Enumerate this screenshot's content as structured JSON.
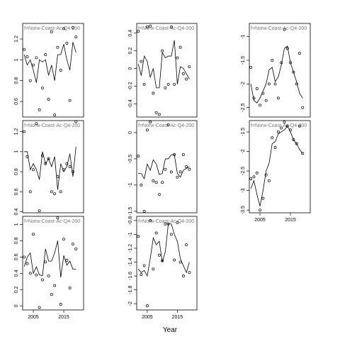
{
  "xlabel": "Year",
  "chart_data": [
    {
      "type": "line",
      "title": "f=Norw-Coast-Ac-Q4-200",
      "x": [
        2002,
        2003,
        2004,
        2005,
        2006,
        2007,
        2008,
        2009,
        2010,
        2011,
        2012,
        2013,
        2014,
        2015,
        2016,
        2017,
        2018,
        2019
      ],
      "xlim": [
        2001.5,
        2021.5
      ],
      "ylim": [
        0.45,
        1.35
      ],
      "yticks": [
        0.6,
        0.8,
        1.0,
        1.2
      ],
      "series": [
        {
          "style": "points",
          "color": "#000000",
          "values": [
            1.1,
            1.03,
            0.8,
            0.95,
            1.02,
            0.52,
            0.73,
            1.05,
            0.62,
            1.27,
            0.47,
            1.12,
            0.9,
            1.3,
            1.16,
            0.61,
            1.31,
            1.22
          ]
        },
        {
          "style": "line",
          "color": "#000000",
          "values": [
            1.05,
            0.95,
            1.0,
            0.9,
            0.78,
            1.0,
            0.98,
            1.0,
            0.85,
            0.95,
            0.8,
            1.05,
            1.05,
            1.15,
            1.0,
            0.9,
            1.17,
            1.07
          ]
        }
      ]
    },
    {
      "type": "line",
      "title": "f=Norw-Coast-Ac-Q4-200",
      "x": [
        2002,
        2003,
        2004,
        2005,
        2006,
        2007,
        2008,
        2009,
        2010,
        2011,
        2012,
        2013,
        2014,
        2015,
        2016,
        2017,
        2018,
        2019
      ],
      "xlim": [
        2001.5,
        2021.5
      ],
      "ylim": [
        -0.55,
        0.51
      ],
      "yticks": [
        -0.4,
        -0.2,
        0.0,
        0.2,
        0.4
      ],
      "series": [
        {
          "style": "points",
          "color": "#000000",
          "values": [
            0.42,
            0.08,
            -0.18,
            0.47,
            0.48,
            -0.28,
            -0.5,
            -0.52,
            0.2,
            -0.22,
            -0.18,
            0.47,
            -0.18,
            0.12,
            0.24,
            -0.06,
            -0.12,
            0.02
          ]
        },
        {
          "style": "line",
          "color": "#000000",
          "values": [
            0.05,
            -0.08,
            0.14,
            0.08,
            -0.1,
            0.0,
            -0.22,
            -0.22,
            0.18,
            0.12,
            0.14,
            0.14,
            0.32,
            -0.18,
            0.02,
            0.0,
            -0.06,
            -0.12
          ]
        }
      ]
    },
    {
      "type": "line",
      "title": "f=Norw-Coast-Ac-Q4-200",
      "x": [
        2002,
        2003,
        2004,
        2005,
        2006,
        2007,
        2008,
        2009,
        2010,
        2011,
        2012,
        2013,
        2014,
        2015,
        2016,
        2017,
        2018,
        2019
      ],
      "xlim": [
        2001.5,
        2021.5
      ],
      "ylim": [
        -2.7,
        -0.72
      ],
      "yticks": [
        -2.5,
        -2.0,
        -1.5,
        -1.0
      ],
      "series": [
        {
          "style": "points",
          "color": "#000000",
          "values": [
            -1.65,
            -2.3,
            -2.1,
            -2.45,
            -2.2,
            -2.35,
            -2.0,
            -1.5,
            -2.0,
            -2.3,
            -1.55,
            -0.85,
            -1.25,
            -1.55,
            -1.75,
            -2.0,
            -1.35,
            -2.5
          ]
        },
        {
          "style": "line",
          "color": "#000000",
          "values": [
            -2.0,
            -2.35,
            -2.4,
            -2.3,
            -2.15,
            -2.0,
            -1.7,
            -1.65,
            -1.95,
            -1.85,
            -1.6,
            -1.25,
            -1.2,
            -1.55,
            -1.75,
            -1.95,
            -2.2,
            -2.3
          ]
        }
      ]
    },
    {
      "type": "line",
      "title": "f=Norw-Coast-Ac-Q4-200",
      "x": [
        2002,
        2003,
        2004,
        2005,
        2006,
        2007,
        2008,
        2009,
        2010,
        2011,
        2012,
        2013,
        2014,
        2015,
        2016,
        2017,
        2018,
        2019
      ],
      "xlim": [
        2001.5,
        2021.5
      ],
      "ylim": [
        0.39,
        1.31
      ],
      "yticks": [
        0.4,
        0.6,
        0.8,
        1.0,
        1.2
      ],
      "series": [
        {
          "style": "points",
          "color": "#000000",
          "values": [
            1.2,
            0.95,
            0.6,
            0.82,
            1.28,
            0.41,
            0.96,
            0.88,
            0.93,
            0.6,
            0.58,
            0.75,
            0.6,
            0.82,
            0.88,
            0.85,
            0.8,
            1.3
          ]
        },
        {
          "style": "line",
          "color": "#000000",
          "values": [
            1.0,
            1.0,
            0.82,
            0.88,
            0.82,
            0.72,
            1.0,
            0.88,
            0.93,
            0.85,
            0.95,
            0.62,
            0.88,
            0.8,
            0.85,
            0.98,
            0.75,
            1.05
          ]
        }
      ]
    },
    {
      "type": "line",
      "title": "f=Norw-Coast-Ac-Q4-200",
      "x": [
        2002,
        2003,
        2004,
        2005,
        2006,
        2007,
        2008,
        2009,
        2010,
        2011,
        2012,
        2013,
        2014,
        2015,
        2016,
        2017,
        2018,
        2019
      ],
      "xlim": [
        2001.5,
        2021.5
      ],
      "ylim": [
        -1.53,
        0.23
      ],
      "yticks": [
        -1.5,
        -1.0,
        -0.5,
        0.0
      ],
      "series": [
        {
          "style": "points",
          "color": "#000000",
          "values": [
            -0.45,
            -1.0,
            -1.5,
            0.05,
            0.2,
            -0.92,
            -0.95,
            -1.18,
            -0.95,
            -0.7,
            0.15,
            -0.75,
            -0.42,
            -0.85,
            -0.75,
            -0.42,
            -0.65,
            -0.7
          ]
        },
        {
          "style": "line",
          "color": "#000000",
          "values": [
            -0.78,
            -0.78,
            -0.88,
            -0.6,
            -0.72,
            -0.52,
            -0.6,
            -0.8,
            -0.78,
            -0.5,
            -0.5,
            -0.42,
            -0.42,
            -0.78,
            -0.85,
            -0.72,
            -0.68,
            -0.65
          ]
        }
      ]
    },
    {
      "type": "line",
      "title": "f=Norw-Coast-Ac-Q4-200",
      "x": [
        2002,
        2003,
        2004,
        2005,
        2006,
        2007,
        2008,
        2009,
        2010,
        2011,
        2012,
        2013,
        2014,
        2015,
        2016,
        2017,
        2018,
        2019
      ],
      "xlim": [
        2001.5,
        2021.5
      ],
      "xticks": [
        2005,
        2015
      ],
      "ylim": [
        -3.57,
        -1.21
      ],
      "yticks": [
        -3.5,
        -3.0,
        -2.5,
        -2.0,
        -1.5
      ],
      "series": [
        {
          "style": "points",
          "color": "#000000",
          "values": [
            -2.7,
            -2.65,
            -2.55,
            -3.5,
            -3.2,
            -2.6,
            -2.75,
            -1.65,
            -1.9,
            -1.5,
            -1.4,
            -1.25,
            -1.35,
            -1.45,
            -1.7,
            -1.8,
            -1.35,
            -2.05
          ]
        },
        {
          "style": "line",
          "color": "#000000",
          "values": [
            -2.95,
            -2.75,
            -3.1,
            -3.4,
            -3.0,
            -2.5,
            -2.3,
            -1.8,
            -1.75,
            -1.55,
            -1.5,
            -1.45,
            -1.35,
            -1.5,
            -1.7,
            -1.8,
            -1.95,
            -2.05
          ]
        }
      ]
    },
    {
      "type": "line",
      "title": "f=Norw-Coast-Ac-Q4-200",
      "x": [
        2002,
        2003,
        2004,
        2005,
        2006,
        2007,
        2008,
        2009,
        2010,
        2011,
        2012,
        2013,
        2014,
        2015,
        2016,
        2017,
        2018,
        2019
      ],
      "xlim": [
        2001.5,
        2021.5
      ],
      "xticks": [
        2005,
        2015
      ],
      "ylim": [
        -0.05,
        1.1
      ],
      "yticks": [
        0.0,
        0.2,
        0.4,
        0.6,
        0.8,
        1.0
      ],
      "series": [
        {
          "style": "points",
          "color": "#000000",
          "values": [
            0.6,
            0.52,
            0.4,
            0.88,
            0.38,
            -0.02,
            0.32,
            0.54,
            0.37,
            0.14,
            0.25,
            1.08,
            0.02,
            0.82,
            0.56,
            0.22,
            0.76,
            0.7
          ]
        },
        {
          "style": "line",
          "color": "#000000",
          "values": [
            0.48,
            0.6,
            0.65,
            0.4,
            0.48,
            0.38,
            0.37,
            0.7,
            0.55,
            0.55,
            0.65,
            0.8,
            0.35,
            0.62,
            0.5,
            0.55,
            0.45,
            0.45
          ]
        }
      ]
    },
    {
      "type": "line",
      "title": "f=Norw-Coast-Ac-Q4-200",
      "x": [
        2002,
        2003,
        2004,
        2005,
        2006,
        2007,
        2008,
        2009,
        2010,
        2011,
        2012,
        2013,
        2014,
        2015,
        2016,
        2017,
        2018,
        2019
      ],
      "xlim": [
        2001.5,
        2021.5
      ],
      "xticks": [
        2005,
        2015
      ],
      "ylim": [
        -2.09,
        -0.74
      ],
      "yticks": [
        -2.0,
        -1.8,
        -1.6,
        -1.4,
        -1.2,
        -1.0,
        -0.8
      ],
      "series": [
        {
          "style": "points",
          "color": "#000000",
          "values": [
            -1.03,
            -1.58,
            -1.45,
            -2.03,
            -0.8,
            -1.5,
            -0.98,
            -1.3,
            -1.38,
            -0.85,
            -0.85,
            -1.0,
            -1.37,
            -0.83,
            -1.4,
            -1.6,
            -1.15,
            -1.55
          ]
        },
        {
          "style": "line",
          "color": "#000000",
          "values": [
            -1.5,
            -1.55,
            -1.52,
            -1.6,
            -1.35,
            -1.05,
            -1.15,
            -1.1,
            -1.4,
            -1.25,
            -0.85,
            -0.85,
            -1.0,
            -1.1,
            -1.35,
            -1.45,
            -1.55,
            -1.4
          ]
        }
      ]
    }
  ]
}
